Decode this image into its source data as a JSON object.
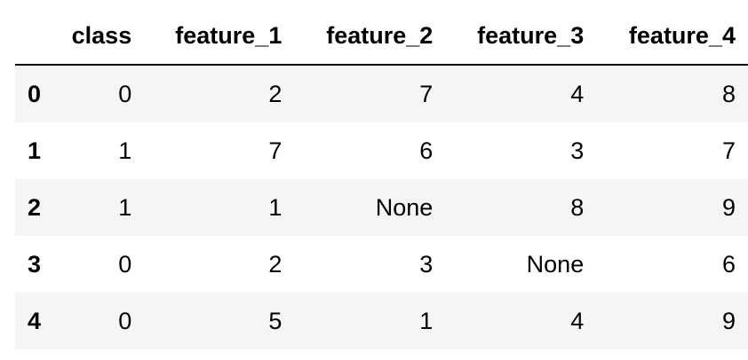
{
  "table": {
    "index_header": "",
    "columns": [
      "class",
      "feature_1",
      "feature_2",
      "feature_3",
      "feature_4"
    ],
    "rows": [
      {
        "index": "0",
        "cells": [
          "0",
          "2",
          "7",
          "4",
          "8"
        ]
      },
      {
        "index": "1",
        "cells": [
          "1",
          "7",
          "6",
          "3",
          "7"
        ]
      },
      {
        "index": "2",
        "cells": [
          "1",
          "1",
          "None",
          "8",
          "9"
        ]
      },
      {
        "index": "3",
        "cells": [
          "0",
          "2",
          "3",
          "None",
          "6"
        ]
      },
      {
        "index": "4",
        "cells": [
          "0",
          "5",
          "1",
          "4",
          "9"
        ]
      }
    ]
  },
  "colors": {
    "stripe": "#f5f5f5",
    "header_rule": "#000000",
    "text": "#000000"
  }
}
